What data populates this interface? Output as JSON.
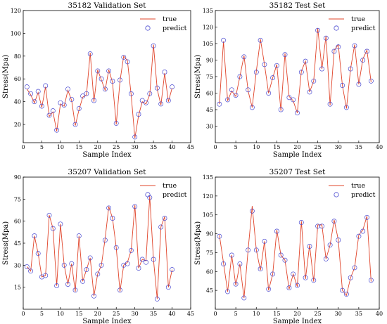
{
  "colors": {
    "true_line": "#e0442a",
    "predict_marker": "#4a4ad0"
  },
  "chart_data": [
    {
      "type": "line",
      "title": "35182 Validation Set",
      "xlabel": "Sample Index",
      "ylabel": "Stress(Mpa)",
      "xlim": [
        0,
        45
      ],
      "ylim": [
        4,
        120
      ],
      "xticks": [
        0,
        5,
        10,
        15,
        20,
        25,
        30,
        35,
        40,
        45
      ],
      "yticks": [
        20,
        40,
        60,
        80,
        100,
        120
      ],
      "legend": {
        "position": "top-right",
        "entries": [
          "true",
          "predict"
        ]
      },
      "series": [
        {
          "name": "true",
          "x": [
            1,
            2,
            3,
            4,
            5,
            6,
            7,
            8,
            9,
            10,
            11,
            12,
            13,
            14,
            15,
            16,
            17,
            18,
            19,
            20,
            21,
            22,
            23,
            24,
            25,
            26,
            27,
            28,
            29,
            30,
            31,
            32,
            33,
            34,
            35,
            36,
            37,
            38,
            39,
            40
          ],
          "values": [
            51,
            46,
            39,
            48,
            35,
            53,
            27,
            31,
            14,
            38,
            36,
            50,
            41,
            19,
            33,
            44,
            46,
            83,
            40,
            68,
            59,
            50,
            68,
            57,
            20,
            58,
            80,
            76,
            46,
            8,
            28,
            40,
            38,
            46,
            90,
            51,
            37,
            65,
            40,
            52
          ]
        },
        {
          "name": "predict",
          "x": [
            1,
            2,
            3,
            4,
            5,
            6,
            7,
            8,
            9,
            10,
            11,
            12,
            13,
            14,
            15,
            16,
            17,
            18,
            19,
            20,
            21,
            22,
            23,
            24,
            25,
            26,
            27,
            28,
            29,
            30,
            31,
            32,
            33,
            34,
            35,
            36,
            37,
            38,
            39,
            40
          ],
          "values": [
            53,
            47,
            40,
            49,
            36,
            54,
            28,
            32,
            15,
            39,
            37,
            51,
            42,
            20,
            34,
            45,
            47,
            82,
            41,
            67,
            60,
            51,
            67,
            58,
            21,
            59,
            79,
            75,
            47,
            9,
            29,
            41,
            39,
            47,
            89,
            52,
            38,
            66,
            41,
            53
          ]
        }
      ]
    },
    {
      "type": "line",
      "title": "35182 Test Set",
      "xlabel": "Sample Index",
      "ylabel": "Stress(Mpa)",
      "xlim": [
        0,
        40
      ],
      "ylim": [
        15,
        135
      ],
      "xticks": [
        0,
        5,
        10,
        15,
        20,
        25,
        30,
        35,
        40
      ],
      "yticks": [
        30,
        45,
        60,
        75,
        90,
        105,
        120,
        135
      ],
      "legend": {
        "position": "top-right",
        "entries": [
          "true",
          "predict"
        ]
      },
      "series": [
        {
          "name": "true",
          "x": [
            1,
            2,
            3,
            4,
            5,
            6,
            7,
            8,
            9,
            10,
            11,
            12,
            13,
            14,
            15,
            16,
            17,
            18,
            19,
            20,
            21,
            22,
            23,
            24,
            25,
            26,
            27,
            28,
            29,
            30,
            31,
            32,
            33,
            34,
            35,
            36,
            37,
            38
          ],
          "values": [
            50,
            107,
            53,
            62,
            57,
            75,
            94,
            62,
            47,
            80,
            109,
            86,
            60,
            74,
            86,
            44,
            96,
            57,
            53,
            42,
            80,
            89,
            61,
            71,
            119,
            82,
            112,
            49,
            99,
            104,
            67,
            46,
            82,
            104,
            68,
            91,
            99,
            70
          ]
        },
        {
          "name": "predict",
          "x": [
            1,
            2,
            3,
            4,
            5,
            6,
            7,
            8,
            9,
            10,
            11,
            12,
            13,
            14,
            15,
            16,
            17,
            18,
            19,
            20,
            21,
            22,
            23,
            24,
            25,
            26,
            27,
            28,
            29,
            30,
            31,
            32,
            33,
            34,
            35,
            36,
            37,
            38
          ],
          "values": [
            50,
            108,
            54,
            63,
            58,
            75,
            93,
            63,
            47,
            79,
            108,
            86,
            60,
            74,
            85,
            45,
            95,
            56,
            54,
            42,
            79,
            89,
            61,
            71,
            117,
            82,
            110,
            50,
            98,
            102,
            67,
            47,
            82,
            103,
            68,
            90,
            98,
            71
          ]
        }
      ]
    },
    {
      "type": "line",
      "title": "35207 Validation Set",
      "xlabel": "Sample Index",
      "ylabel": "Stress(Mpa)",
      "xlim": [
        0,
        45
      ],
      "ylim": [
        0,
        90
      ],
      "xticks": [
        0,
        5,
        10,
        15,
        20,
        25,
        30,
        35,
        40,
        45
      ],
      "yticks": [
        15,
        30,
        45,
        60,
        75,
        90
      ],
      "legend": {
        "position": "top-right",
        "entries": [
          "true",
          "predict"
        ]
      },
      "series": [
        {
          "name": "true",
          "x": [
            1,
            2,
            3,
            4,
            5,
            6,
            7,
            8,
            9,
            10,
            11,
            12,
            13,
            14,
            15,
            16,
            17,
            18,
            19,
            20,
            21,
            22,
            23,
            24,
            25,
            26,
            27,
            28,
            29,
            30,
            31,
            32,
            33,
            34,
            35,
            36,
            37,
            38,
            39,
            40
          ],
          "values": [
            29,
            26,
            50,
            38,
            22,
            23,
            64,
            55,
            16,
            58,
            30,
            17,
            31,
            12,
            50,
            19,
            27,
            35,
            9,
            24,
            30,
            48,
            70,
            62,
            42,
            12,
            30,
            32,
            40,
            71,
            28,
            34,
            33,
            77,
            34,
            7,
            56,
            63,
            15,
            27
          ]
        },
        {
          "name": "predict",
          "x": [
            1,
            2,
            3,
            4,
            5,
            6,
            7,
            8,
            9,
            10,
            11,
            12,
            13,
            14,
            15,
            16,
            17,
            18,
            19,
            20,
            21,
            22,
            23,
            24,
            25,
            26,
            27,
            28,
            29,
            30,
            31,
            32,
            33,
            34,
            35,
            36,
            37,
            38,
            39,
            40
          ],
          "values": [
            29,
            26,
            50,
            38,
            22,
            23,
            64,
            55,
            16,
            58,
            30,
            17,
            31,
            13,
            50,
            19,
            27,
            35,
            9,
            24,
            30,
            47,
            69,
            62,
            42,
            13,
            30,
            31,
            40,
            70,
            28,
            34,
            32,
            76,
            34,
            7,
            56,
            62,
            15,
            27
          ]
        }
      ]
    },
    {
      "type": "line",
      "title": "35207 Test Set",
      "xlabel": "Sample Index",
      "ylabel": "Stress(Mpa)",
      "xlim": [
        0,
        40
      ],
      "ylim": [
        30,
        135
      ],
      "xticks": [
        0,
        5,
        10,
        15,
        20,
        25,
        30,
        35,
        40
      ],
      "yticks": [
        45,
        60,
        75,
        90,
        105,
        120,
        135
      ],
      "legend": {
        "position": "top-right",
        "entries": [
          "true",
          "predict"
        ]
      },
      "series": [
        {
          "name": "true",
          "x": [
            1,
            2,
            3,
            4,
            5,
            6,
            7,
            8,
            9,
            10,
            11,
            12,
            13,
            14,
            15,
            16,
            17,
            18,
            19,
            20,
            21,
            22,
            23,
            24,
            25,
            26,
            27,
            28,
            29,
            30,
            31,
            32,
            33,
            34,
            35,
            36,
            37,
            38
          ],
          "values": [
            89,
            67,
            44,
            73,
            49,
            66,
            39,
            77,
            112,
            77,
            61,
            84,
            45,
            58,
            93,
            73,
            69,
            46,
            58,
            48,
            100,
            54,
            81,
            52,
            97,
            97,
            70,
            81,
            101,
            85,
            45,
            41,
            55,
            63,
            89,
            93,
            104,
            52
          ]
        },
        {
          "name": "predict",
          "x": [
            1,
            2,
            3,
            4,
            5,
            6,
            7,
            8,
            9,
            10,
            11,
            12,
            13,
            14,
            15,
            16,
            17,
            18,
            19,
            20,
            21,
            22,
            23,
            24,
            25,
            26,
            27,
            28,
            29,
            30,
            31,
            32,
            33,
            34,
            35,
            36,
            37,
            38
          ],
          "values": [
            88,
            66,
            44,
            73,
            50,
            66,
            39,
            77,
            108,
            77,
            62,
            84,
            46,
            58,
            92,
            73,
            69,
            47,
            58,
            49,
            99,
            55,
            80,
            53,
            96,
            96,
            70,
            81,
            100,
            85,
            45,
            42,
            55,
            63,
            88,
            92,
            103,
            53
          ]
        }
      ]
    }
  ]
}
